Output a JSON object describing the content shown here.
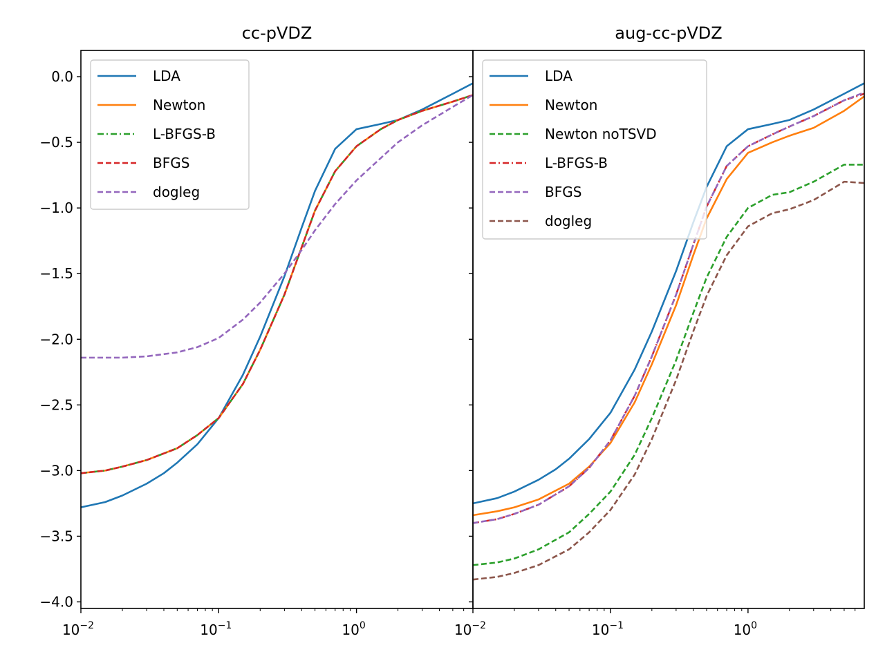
{
  "chart_data": [
    {
      "type": "line",
      "title": "cc-pVDZ",
      "xscale": "log",
      "xlim": [
        0.01,
        7.0
      ],
      "ylim": [
        -4.05,
        0.2
      ],
      "yticks": [
        0.0,
        -0.5,
        -1.0,
        -1.5,
        -2.0,
        -2.5,
        -3.0,
        -3.5,
        -4.0
      ],
      "ytick_labels": [
        "0.0",
        "−0.5",
        "−1.0",
        "−1.5",
        "−2.0",
        "−2.5",
        "−3.0",
        "−3.5",
        "−4.0"
      ],
      "xtick_labels": [
        {
          "base": "10",
          "exp": "−2"
        },
        {
          "base": "10",
          "exp": "−1"
        },
        {
          "base": "10",
          "exp": "0"
        }
      ],
      "legend_position": "upper-left",
      "series": [
        {
          "name": "LDA",
          "color": "#1f77b4",
          "style": "solid",
          "points": [
            [
              0.01,
              -3.28
            ],
            [
              0.015,
              -3.24
            ],
            [
              0.02,
              -3.19
            ],
            [
              0.03,
              -3.1
            ],
            [
              0.04,
              -3.02
            ],
            [
              0.05,
              -2.94
            ],
            [
              0.07,
              -2.8
            ],
            [
              0.1,
              -2.6
            ],
            [
              0.15,
              -2.27
            ],
            [
              0.2,
              -1.98
            ],
            [
              0.3,
              -1.52
            ],
            [
              0.4,
              -1.15
            ],
            [
              0.5,
              -0.87
            ],
            [
              0.7,
              -0.55
            ],
            [
              1.0,
              -0.4
            ],
            [
              1.5,
              -0.36
            ],
            [
              2.0,
              -0.33
            ],
            [
              3.0,
              -0.25
            ],
            [
              5.0,
              -0.13
            ],
            [
              7.0,
              -0.05
            ]
          ]
        },
        {
          "name": "Newton",
          "color": "#ff7f0e",
          "style": "solid",
          "points": [
            [
              0.01,
              -3.02
            ],
            [
              0.015,
              -3.0
            ],
            [
              0.02,
              -2.97
            ],
            [
              0.03,
              -2.92
            ],
            [
              0.05,
              -2.83
            ],
            [
              0.07,
              -2.73
            ],
            [
              0.1,
              -2.6
            ],
            [
              0.15,
              -2.34
            ],
            [
              0.2,
              -2.08
            ],
            [
              0.3,
              -1.66
            ],
            [
              0.4,
              -1.3
            ],
            [
              0.5,
              -1.02
            ],
            [
              0.7,
              -0.72
            ],
            [
              1.0,
              -0.53
            ],
            [
              1.5,
              -0.4
            ],
            [
              2.0,
              -0.33
            ],
            [
              3.0,
              -0.26
            ],
            [
              5.0,
              -0.19
            ],
            [
              7.0,
              -0.14
            ]
          ]
        },
        {
          "name": "L-BFGS-B",
          "color": "#2ca02c",
          "style": "dashdot",
          "points": [
            [
              0.01,
              -3.02
            ],
            [
              0.015,
              -3.0
            ],
            [
              0.02,
              -2.97
            ],
            [
              0.03,
              -2.92
            ],
            [
              0.05,
              -2.83
            ],
            [
              0.07,
              -2.73
            ],
            [
              0.1,
              -2.6
            ],
            [
              0.15,
              -2.34
            ],
            [
              0.2,
              -2.08
            ],
            [
              0.3,
              -1.66
            ],
            [
              0.4,
              -1.3
            ],
            [
              0.5,
              -1.02
            ],
            [
              0.7,
              -0.72
            ],
            [
              1.0,
              -0.53
            ],
            [
              1.5,
              -0.4
            ],
            [
              2.0,
              -0.33
            ],
            [
              3.0,
              -0.26
            ],
            [
              5.0,
              -0.19
            ],
            [
              7.0,
              -0.14
            ]
          ]
        },
        {
          "name": "BFGS",
          "color": "#d62728",
          "style": "dashed",
          "points": [
            [
              0.01,
              -3.02
            ],
            [
              0.015,
              -3.0
            ],
            [
              0.02,
              -2.97
            ],
            [
              0.03,
              -2.92
            ],
            [
              0.05,
              -2.83
            ],
            [
              0.07,
              -2.73
            ],
            [
              0.1,
              -2.6
            ],
            [
              0.15,
              -2.34
            ],
            [
              0.2,
              -2.08
            ],
            [
              0.3,
              -1.66
            ],
            [
              0.4,
              -1.3
            ],
            [
              0.5,
              -1.02
            ],
            [
              0.7,
              -0.72
            ],
            [
              1.0,
              -0.53
            ],
            [
              1.5,
              -0.4
            ],
            [
              2.0,
              -0.33
            ],
            [
              3.0,
              -0.26
            ],
            [
              5.0,
              -0.19
            ],
            [
              7.0,
              -0.14
            ]
          ]
        },
        {
          "name": "dogleg",
          "color": "#9467bd",
          "style": "dashed",
          "points": [
            [
              0.01,
              -2.14
            ],
            [
              0.02,
              -2.14
            ],
            [
              0.03,
              -2.13
            ],
            [
              0.05,
              -2.1
            ],
            [
              0.07,
              -2.06
            ],
            [
              0.1,
              -1.99
            ],
            [
              0.15,
              -1.85
            ],
            [
              0.2,
              -1.72
            ],
            [
              0.3,
              -1.5
            ],
            [
              0.4,
              -1.32
            ],
            [
              0.5,
              -1.17
            ],
            [
              0.7,
              -0.97
            ],
            [
              1.0,
              -0.79
            ],
            [
              1.5,
              -0.62
            ],
            [
              2.0,
              -0.5
            ],
            [
              3.0,
              -0.37
            ],
            [
              5.0,
              -0.23
            ],
            [
              7.0,
              -0.14
            ]
          ]
        }
      ]
    },
    {
      "type": "line",
      "title": "aug-cc-pVDZ",
      "xscale": "log",
      "xlim": [
        0.01,
        7.0
      ],
      "ylim": [
        -4.05,
        0.2
      ],
      "legend_position": "upper-left",
      "series": [
        {
          "name": "LDA",
          "color": "#1f77b4",
          "style": "solid",
          "points": [
            [
              0.01,
              -3.25
            ],
            [
              0.015,
              -3.21
            ],
            [
              0.02,
              -3.16
            ],
            [
              0.03,
              -3.07
            ],
            [
              0.04,
              -2.99
            ],
            [
              0.05,
              -2.91
            ],
            [
              0.07,
              -2.76
            ],
            [
              0.1,
              -2.56
            ],
            [
              0.15,
              -2.23
            ],
            [
              0.2,
              -1.94
            ],
            [
              0.3,
              -1.48
            ],
            [
              0.4,
              -1.11
            ],
            [
              0.5,
              -0.84
            ],
            [
              0.7,
              -0.53
            ],
            [
              1.0,
              -0.4
            ],
            [
              1.5,
              -0.36
            ],
            [
              2.0,
              -0.33
            ],
            [
              3.0,
              -0.25
            ],
            [
              5.0,
              -0.13
            ],
            [
              7.0,
              -0.05
            ]
          ]
        },
        {
          "name": "Newton",
          "color": "#ff7f0e",
          "style": "solid",
          "points": [
            [
              0.01,
              -3.34
            ],
            [
              0.015,
              -3.31
            ],
            [
              0.02,
              -3.28
            ],
            [
              0.03,
              -3.22
            ],
            [
              0.05,
              -3.1
            ],
            [
              0.07,
              -2.97
            ],
            [
              0.1,
              -2.79
            ],
            [
              0.15,
              -2.48
            ],
            [
              0.2,
              -2.19
            ],
            [
              0.3,
              -1.74
            ],
            [
              0.4,
              -1.36
            ],
            [
              0.5,
              -1.08
            ],
            [
              0.7,
              -0.78
            ],
            [
              1.0,
              -0.58
            ],
            [
              1.5,
              -0.5
            ],
            [
              2.0,
              -0.45
            ],
            [
              3.0,
              -0.39
            ],
            [
              5.0,
              -0.26
            ],
            [
              7.0,
              -0.15
            ]
          ]
        },
        {
          "name": "Newton noTSVD",
          "color": "#2ca02c",
          "style": "dashed",
          "points": [
            [
              0.01,
              -3.72
            ],
            [
              0.015,
              -3.7
            ],
            [
              0.02,
              -3.67
            ],
            [
              0.03,
              -3.6
            ],
            [
              0.05,
              -3.47
            ],
            [
              0.07,
              -3.33
            ],
            [
              0.1,
              -3.16
            ],
            [
              0.15,
              -2.88
            ],
            [
              0.2,
              -2.6
            ],
            [
              0.3,
              -2.16
            ],
            [
              0.4,
              -1.8
            ],
            [
              0.5,
              -1.53
            ],
            [
              0.7,
              -1.22
            ],
            [
              1.0,
              -1.0
            ],
            [
              1.5,
              -0.9
            ],
            [
              2.0,
              -0.88
            ],
            [
              3.0,
              -0.8
            ],
            [
              5.0,
              -0.67
            ],
            [
              7.0,
              -0.67
            ]
          ]
        },
        {
          "name": "L-BFGS-B",
          "color": "#d62728",
          "style": "dashdot",
          "points": [
            [
              0.01,
              -3.4
            ],
            [
              0.015,
              -3.37
            ],
            [
              0.02,
              -3.33
            ],
            [
              0.03,
              -3.26
            ],
            [
              0.05,
              -3.12
            ],
            [
              0.07,
              -2.98
            ],
            [
              0.1,
              -2.77
            ],
            [
              0.15,
              -2.43
            ],
            [
              0.2,
              -2.13
            ],
            [
              0.3,
              -1.66
            ],
            [
              0.4,
              -1.28
            ],
            [
              0.5,
              -0.99
            ],
            [
              0.7,
              -0.68
            ],
            [
              1.0,
              -0.53
            ],
            [
              1.5,
              -0.44
            ],
            [
              2.0,
              -0.38
            ],
            [
              3.0,
              -0.3
            ],
            [
              5.0,
              -0.18
            ],
            [
              7.0,
              -0.13
            ]
          ]
        },
        {
          "name": "BFGS",
          "color": "#9467bd",
          "style": "dashed",
          "points": [
            [
              0.01,
              -3.4
            ],
            [
              0.015,
              -3.37
            ],
            [
              0.02,
              -3.33
            ],
            [
              0.03,
              -3.26
            ],
            [
              0.05,
              -3.12
            ],
            [
              0.07,
              -2.98
            ],
            [
              0.1,
              -2.77
            ],
            [
              0.15,
              -2.43
            ],
            [
              0.2,
              -2.13
            ],
            [
              0.3,
              -1.66
            ],
            [
              0.4,
              -1.28
            ],
            [
              0.5,
              -0.99
            ],
            [
              0.7,
              -0.68
            ],
            [
              1.0,
              -0.53
            ],
            [
              1.5,
              -0.44
            ],
            [
              2.0,
              -0.38
            ],
            [
              3.0,
              -0.3
            ],
            [
              5.0,
              -0.18
            ],
            [
              7.0,
              -0.12
            ]
          ]
        },
        {
          "name": "dogleg",
          "color": "#8c564b",
          "style": "dashed",
          "points": [
            [
              0.01,
              -3.83
            ],
            [
              0.015,
              -3.81
            ],
            [
              0.02,
              -3.78
            ],
            [
              0.03,
              -3.72
            ],
            [
              0.05,
              -3.6
            ],
            [
              0.07,
              -3.47
            ],
            [
              0.1,
              -3.3
            ],
            [
              0.15,
              -3.03
            ],
            [
              0.2,
              -2.76
            ],
            [
              0.3,
              -2.31
            ],
            [
              0.4,
              -1.94
            ],
            [
              0.5,
              -1.67
            ],
            [
              0.7,
              -1.36
            ],
            [
              1.0,
              -1.14
            ],
            [
              1.5,
              -1.04
            ],
            [
              2.0,
              -1.01
            ],
            [
              3.0,
              -0.94
            ],
            [
              5.0,
              -0.8
            ],
            [
              7.0,
              -0.81
            ]
          ]
        }
      ]
    }
  ]
}
